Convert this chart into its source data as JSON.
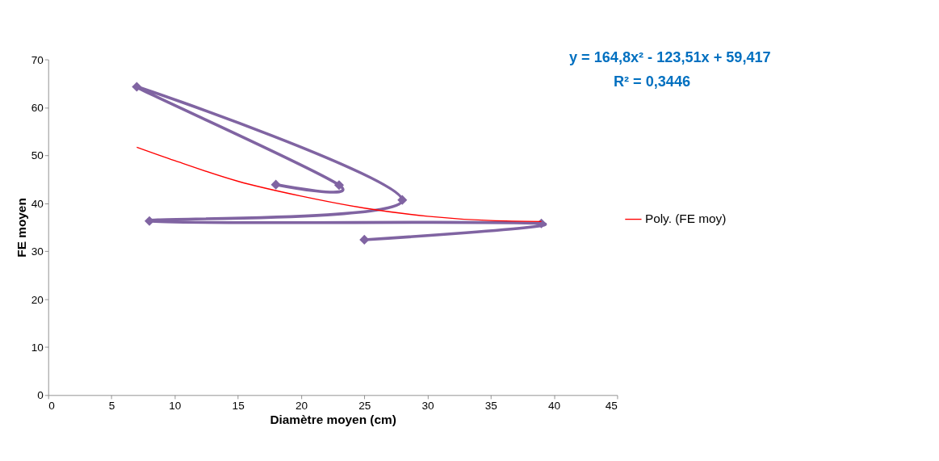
{
  "chart_data": {
    "type": "line",
    "xlabel": "Diamètre moyen  (cm)",
    "ylabel": "FE moyen",
    "xlim": [
      0,
      45
    ],
    "xticks": [
      0,
      5,
      10,
      15,
      20,
      25,
      30,
      35,
      40,
      45
    ],
    "ylim": [
      0,
      70
    ],
    "yticks": [
      0,
      10,
      20,
      30,
      40,
      50,
      60,
      70
    ],
    "grid": false,
    "legend": "right",
    "annotations": [
      "y = 164,8x² - 123,51x + 59,417",
      "R² = 0,3446"
    ],
    "series": [
      {
        "color": "#8064a2",
        "marker": "diamond",
        "x": [
          18,
          23,
          7,
          28,
          8,
          39,
          25
        ],
        "values": [
          43.9,
          43.8,
          64.3,
          40.7,
          36.3,
          35.8,
          32.4
        ]
      },
      {
        "name": "Poly. (FE moy)",
        "color": "#ff0000",
        "marker": "none",
        "x": [
          7,
          10,
          15,
          20,
          25,
          30,
          35,
          39
        ],
        "values": [
          51.7,
          48.9,
          44.6,
          41.5,
          39.0,
          37.3,
          36.4,
          36.2
        ]
      }
    ]
  }
}
